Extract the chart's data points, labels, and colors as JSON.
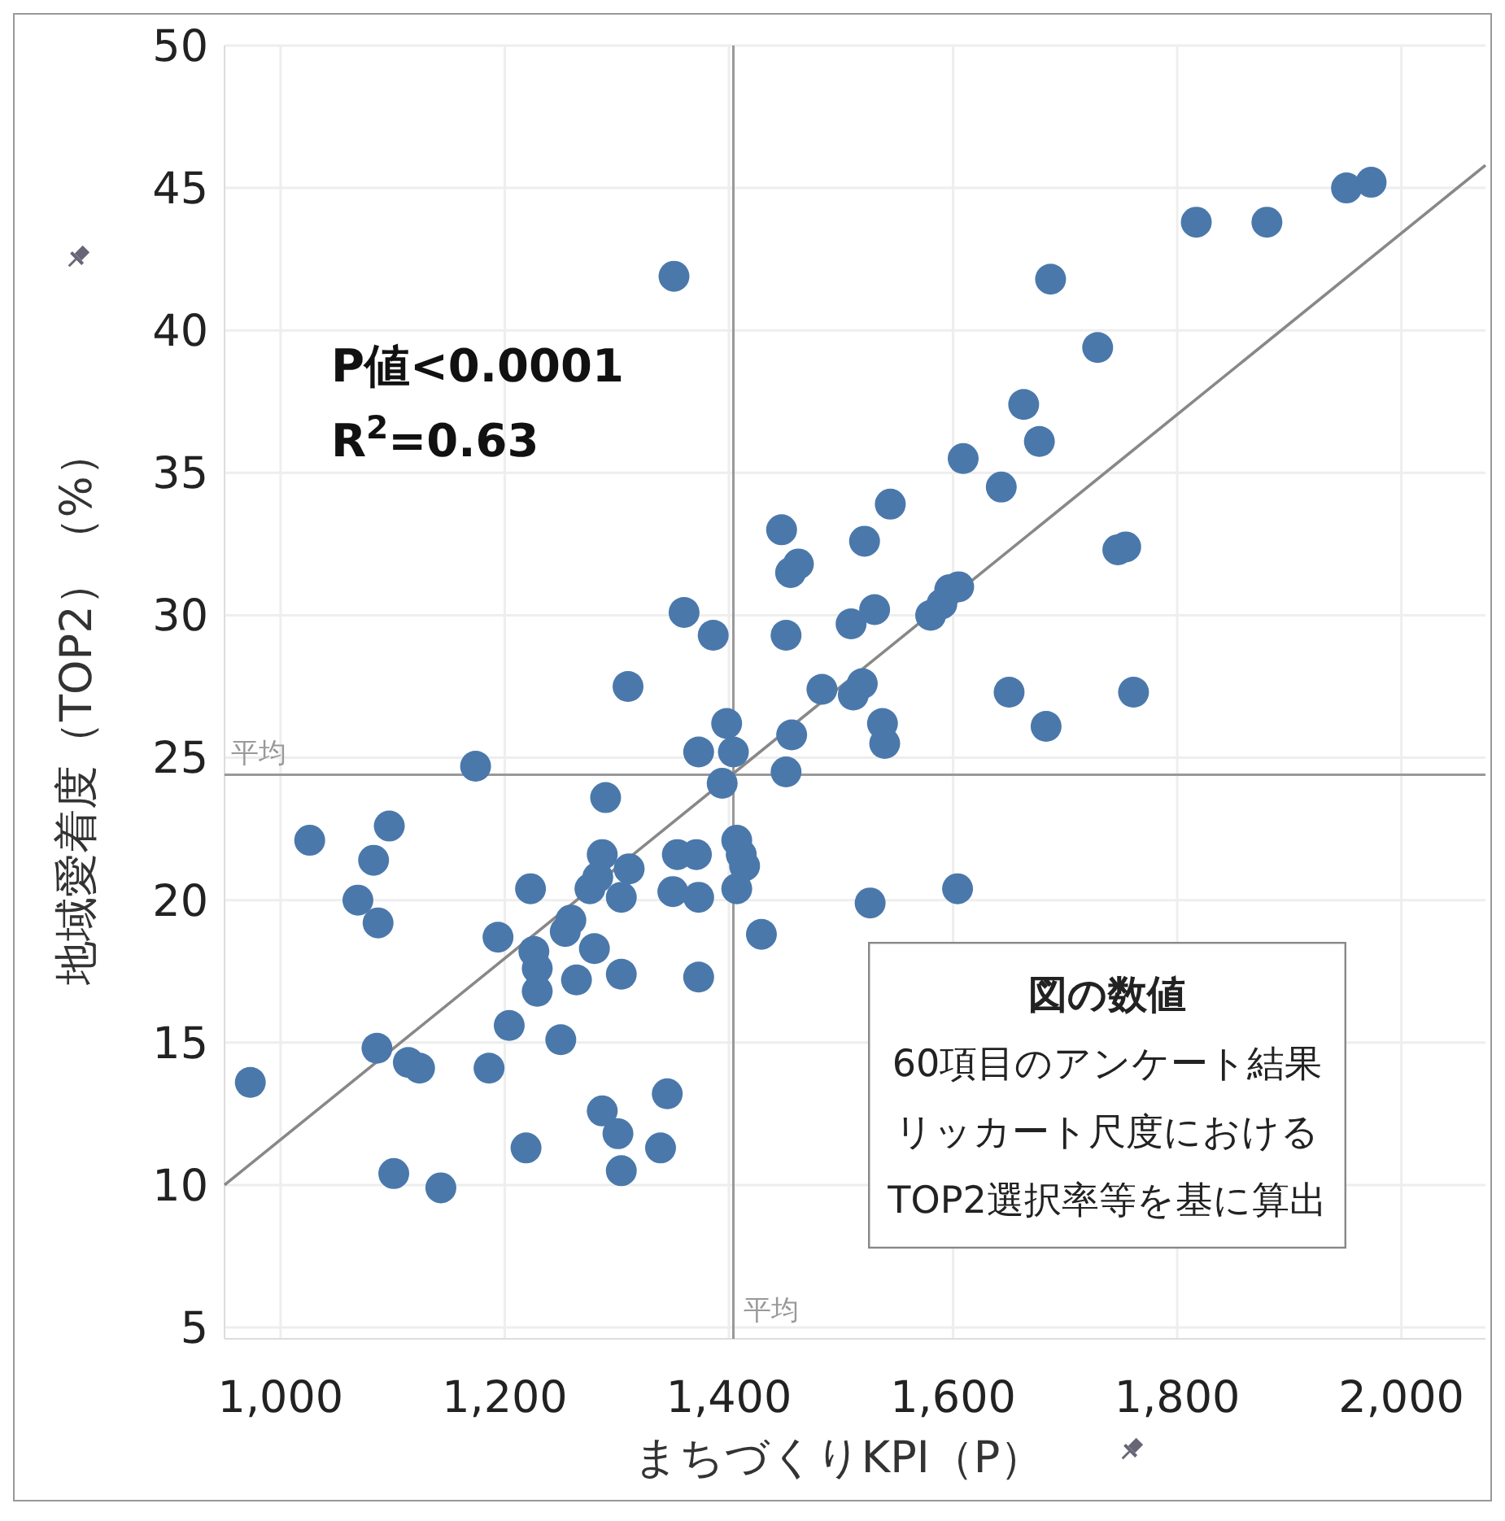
{
  "chart_data": {
    "type": "scatter",
    "xlabel": "まちづくりKPI（P）",
    "ylabel": "地域愛着度（TOP2）（%）",
    "xlim": [
      950,
      2075
    ],
    "ylim": [
      4.6,
      50
    ],
    "xticks": [
      {
        "value": 1000,
        "label": "1,000"
      },
      {
        "value": 1200,
        "label": "1,200"
      },
      {
        "value": 1400,
        "label": "1,400"
      },
      {
        "value": 1600,
        "label": "1,600"
      },
      {
        "value": 1800,
        "label": "1,800"
      },
      {
        "value": 2000,
        "label": "2,000"
      }
    ],
    "yticks": [
      5,
      10,
      15,
      20,
      25,
      30,
      35,
      40,
      45,
      50
    ],
    "grid": true,
    "ref_lines": [
      {
        "axis": "x",
        "value": 1404,
        "label": "平均",
        "color": "#999999"
      },
      {
        "axis": "y",
        "value": 24.4,
        "label": "平均",
        "color": "#999999"
      }
    ],
    "annotations": [
      "P値<0.0001",
      "R$^{2}$=0.63",
      "図の数値",
      "60項目のアンケート結果",
      "リッカート尺度における",
      "TOP2選択率等を基に算出"
    ],
    "series": [
      {
        "marker": "circle",
        "color": "#4a78ab",
        "x": [
          1351,
          1360,
          1386,
          1310,
          1398,
          1373,
          1404,
          1174,
          1951,
          1973,
          1817,
          1880,
          1687,
          1729,
          1663,
          1677,
          1609,
          1643,
          1447,
          1544,
          1521,
          1462,
          1455,
          1754,
          1747,
          1451,
          1530,
          1509,
          1580,
          1597,
          1590,
          1605,
          1483,
          1519,
          1511,
          1650,
          1761,
          1683,
          1537,
          1539,
          1456,
          1451,
          1411,
          1526,
          1604,
          1429,
          1290,
          1394,
          1026,
          1097,
          1083,
          1069,
          1087,
          1223,
          1287,
          1311,
          1276,
          1283,
          1304,
          1259,
          1254,
          1280,
          1194,
          1226,
          1229,
          1229,
          1264,
          1304,
          1354,
          1371,
          1350,
          1373,
          1407,
          1414,
          1407,
          1373,
          1204,
          1250,
          1186,
          1086,
          1114,
          1124,
          973,
          1345,
          1287,
          1301,
          1304,
          1339,
          1219,
          1101,
          1143
        ],
        "values": [
          41.9,
          30.1,
          29.3,
          27.5,
          26.2,
          25.2,
          25.2,
          24.7,
          45.0,
          45.2,
          43.8,
          43.8,
          41.8,
          39.4,
          37.4,
          36.1,
          35.5,
          34.5,
          33.0,
          33.9,
          32.6,
          31.8,
          31.5,
          32.4,
          32.3,
          29.3,
          30.2,
          29.7,
          30.0,
          30.9,
          30.4,
          31.0,
          27.4,
          27.6,
          27.2,
          27.3,
          27.3,
          26.1,
          26.2,
          25.5,
          25.8,
          24.5,
          21.6,
          19.9,
          20.4,
          18.8,
          23.6,
          24.1,
          22.1,
          22.6,
          21.4,
          20.0,
          19.2,
          20.4,
          21.6,
          21.1,
          20.4,
          20.8,
          20.1,
          19.3,
          18.9,
          18.3,
          18.7,
          18.2,
          17.6,
          16.8,
          17.2,
          17.4,
          21.6,
          21.6,
          20.3,
          20.1,
          22.1,
          21.2,
          20.4,
          17.3,
          15.6,
          15.1,
          14.1,
          14.8,
          14.3,
          14.1,
          13.6,
          13.2,
          12.6,
          11.8,
          10.5,
          11.3,
          11.3,
          10.4,
          9.9
        ]
      },
      {
        "type": "line",
        "color": "#888888",
        "x": [
          950,
          2075
        ],
        "values": [
          10,
          45.8
        ]
      }
    ]
  }
}
